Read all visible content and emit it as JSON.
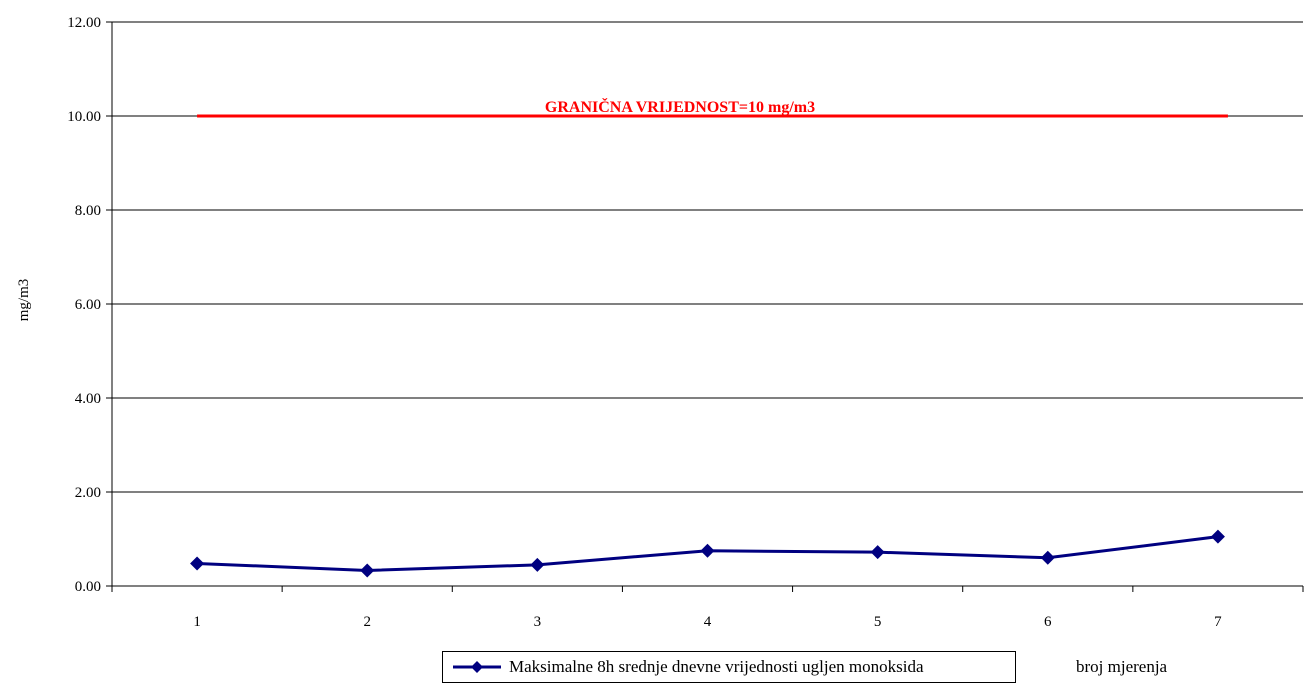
{
  "chart_data": {
    "type": "line",
    "categories": [
      "1",
      "2",
      "3",
      "4",
      "5",
      "6",
      "7"
    ],
    "series": [
      {
        "name": "Maksimalne 8h srednje dnevne vrijednosti ugljen monoksida",
        "values": [
          0.48,
          0.33,
          0.45,
          0.75,
          0.72,
          0.6,
          1.05
        ],
        "color": "#000080",
        "marker": "diamond"
      }
    ],
    "limit": {
      "value": 10,
      "label": "GRANIČNA VRIJEDNOST=10 mg/m3",
      "color": "#ff0000"
    },
    "ylabel": "mg/m3",
    "xlabel": "broj mjerenja",
    "ylim": [
      0,
      12
    ],
    "yticks": [
      "0.00",
      "2.00",
      "4.00",
      "6.00",
      "8.00",
      "10.00",
      "12.00"
    ],
    "grid": true,
    "legend_position": "bottom"
  }
}
